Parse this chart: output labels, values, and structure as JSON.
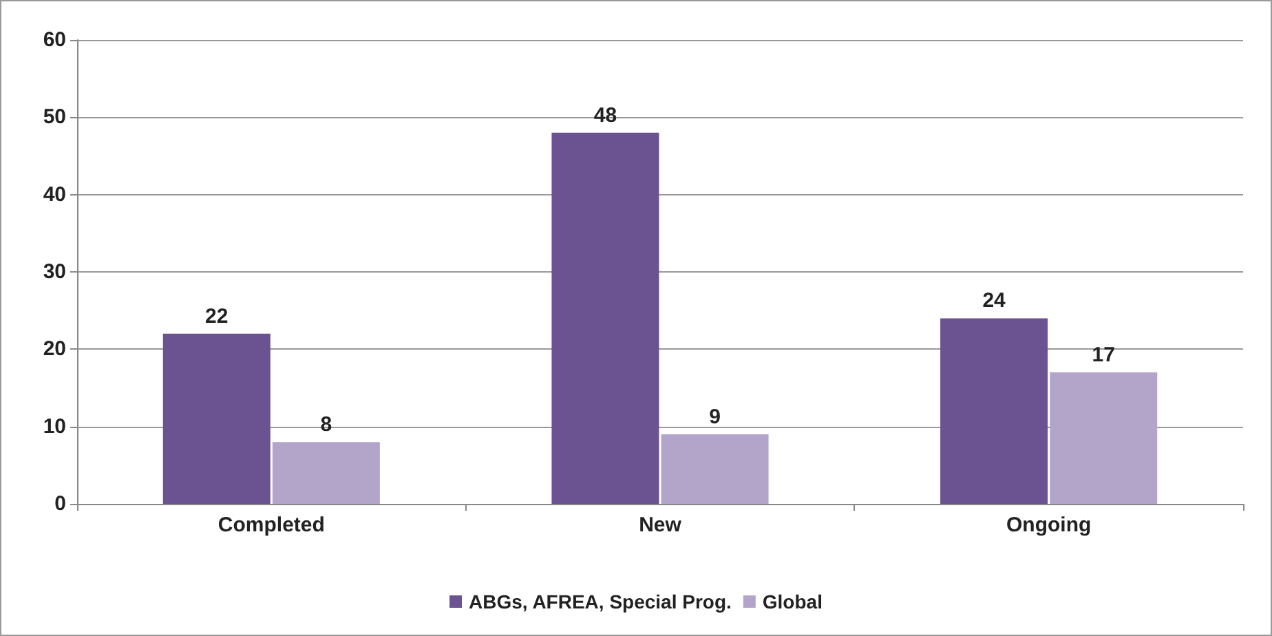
{
  "chart_data": {
    "type": "bar",
    "categories": [
      "Completed",
      "New",
      "Ongoing"
    ],
    "series": [
      {
        "name": "ABGs, AFREA, Special Prog.",
        "color": "#6b5290",
        "values": [
          22,
          48,
          24
        ]
      },
      {
        "name": "Global",
        "color": "#b3a5c9",
        "values": [
          8,
          9,
          17
        ]
      }
    ],
    "ylim": [
      0,
      60
    ],
    "yticks": [
      0,
      10,
      20,
      30,
      40,
      50,
      60
    ],
    "grid": "y",
    "legend": "bottom",
    "data_labels": true
  }
}
